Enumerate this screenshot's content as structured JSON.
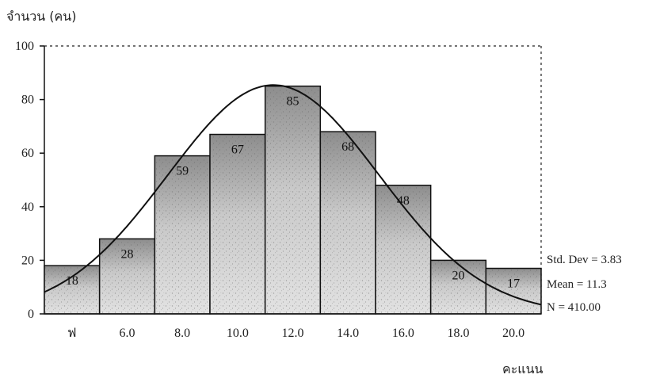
{
  "chart_data": {
    "type": "bar",
    "ylabel": "จำนวน (คน)",
    "xlabel": "คะแนน",
    "ylim": [
      0,
      100
    ],
    "yticks": [
      "0",
      "20",
      "40",
      "60",
      "80",
      "100"
    ],
    "categories": [
      "ฟ",
      "6.0",
      "8.0",
      "10.0",
      "12.0",
      "14.0",
      "16.0",
      "18.0",
      "20.0"
    ],
    "values": [
      18,
      28,
      59,
      67,
      85,
      68,
      48,
      20,
      17
    ],
    "value_labels": [
      "18",
      "28",
      "59",
      "67",
      "85",
      "68",
      "48",
      "20",
      "17"
    ],
    "normal_curve": {
      "mean": 11.3,
      "std_dev": 3.83
    },
    "stats": [
      "Std. Dev = 3.83",
      "Mean = 11.3",
      "N = 410.00"
    ],
    "grid": false,
    "legend": "right",
    "bar_texture_color": "#9a9a9a",
    "bar_outline_color": "#111111"
  }
}
